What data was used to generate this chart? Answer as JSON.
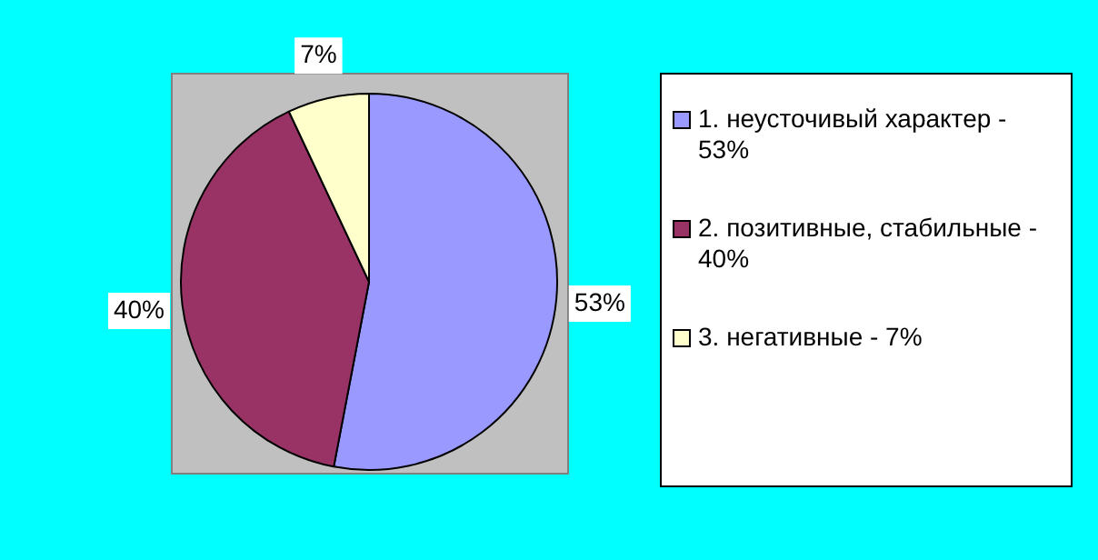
{
  "chart_data": {
    "type": "pie",
    "categories": [
      "1. неусточивый характер - 53%",
      "2. позитивные, стабильные - 40%",
      "3. негативные - 7%"
    ],
    "values": [
      53,
      40,
      7
    ],
    "colors": [
      "#9999ff",
      "#993366",
      "#ffffcc"
    ],
    "value_labels": [
      "53%",
      "40%",
      "7%"
    ],
    "legend": "right"
  }
}
